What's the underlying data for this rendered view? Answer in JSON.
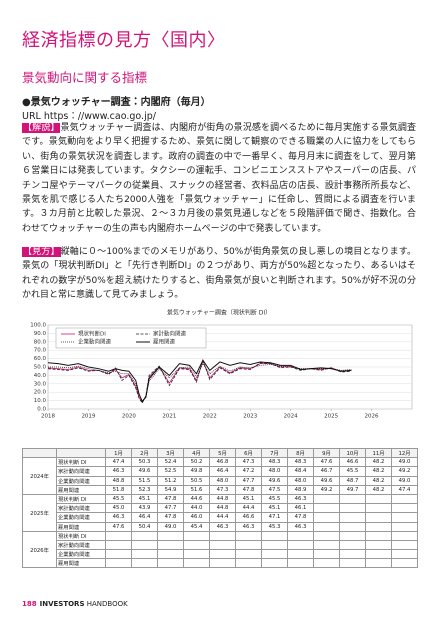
{
  "header": {
    "title": "経済指標の見方〈国内〉"
  },
  "section": {
    "title": "景気動向に関する指標",
    "subtitle": "●景気ウォッチャー調査：内閣府（毎月）",
    "url": "URL https：//www.cao.go.jp/",
    "paragraphs": [
      {
        "label": "【解説】",
        "text": "景気ウォッチャー調査は、内閣府が街角の景況感を調べるために毎月実施する景気調査です。景気動向をより早く把握するため、景気に関して観察のできる職業の人に協力をしてもらい、街角の景気状況を調査します。政府の調査の中で一番早く、毎月月末に調査をして、翌月第６営業日には発表しています。タクシーの運転手、コンビニエンスストアやスーパーの店長、パチンコ屋やテーマパークの従業員、スナックの経営者、衣料品店の店長、設計事務所所長など、景気を肌で感じる人たち2000人強を「景気ウォッチャー」に任命し、質問による調査を行います。３カ月前と比較した景況、２～３カ月後の景気見通しなどを５段階評価で聞き、指数化。合わせてウォッチャーの生の声も内閣府ホームページの中で発表しています。"
      },
      {
        "label": "【見方】",
        "text": "縦軸に０～100%までのメモリがあり、50%が街角景気の良し悪しの境目となります。景気の「現状判断DI」と「先行き判断DI」の２つがあり、両方が50%超となったり、あるいはそれぞれの数字が50%を超え続けたりすると、街角景気が良いと判断されます。50%が好不況の分かれ目と常に意識して見てみましょう。"
      }
    ]
  },
  "chart_data": {
    "type": "line",
    "title": "景気ウォッチャー調査（現状判断 DI）",
    "x": [
      2018.0,
      2018.25,
      2018.5,
      2018.75,
      2019.0,
      2019.25,
      2019.5,
      2019.67,
      2019.83,
      2020.0,
      2020.17,
      2020.25,
      2020.33,
      2020.42,
      2020.5,
      2020.75,
      2021.0,
      2021.25,
      2021.5,
      2021.67,
      2021.83,
      2022.0,
      2022.25,
      2022.5,
      2022.75,
      2023.0,
      2023.25,
      2023.5,
      2023.75,
      2024.0,
      2024.25,
      2024.5,
      2024.75,
      2025.0,
      2025.25,
      2025.5
    ],
    "series": [
      {
        "name": "現状判断DI",
        "color": "#d2147a",
        "style": "solid",
        "values": [
          49,
          48,
          47,
          50,
          46,
          46,
          42,
          47,
          37,
          41,
          27,
          14,
          8,
          15,
          38,
          50,
          31,
          49,
          48,
          34,
          57,
          37,
          50,
          43,
          49,
          48,
          54,
          54,
          50,
          51,
          47,
          48,
          47,
          49,
          45,
          46
        ]
      },
      {
        "name": "家計動向関連",
        "color": "#222222",
        "style": "dashed",
        "values": [
          48,
          47,
          46,
          49,
          45,
          46,
          41,
          49,
          34,
          40,
          25,
          13,
          7,
          16,
          40,
          51,
          28,
          48,
          47,
          32,
          58,
          35,
          49,
          42,
          48,
          47,
          55,
          54,
          49,
          50,
          46,
          48,
          46,
          49,
          44,
          45
        ]
      },
      {
        "name": "企業動向関連",
        "color": "#222222",
        "style": "dotted",
        "values": [
          50,
          50,
          49,
          51,
          48,
          46,
          43,
          45,
          42,
          42,
          30,
          17,
          10,
          14,
          33,
          48,
          37,
          49,
          50,
          38,
          54,
          42,
          51,
          45,
          50,
          49,
          52,
          53,
          51,
          50,
          48,
          48,
          48,
          48,
          46,
          47
        ]
      },
      {
        "name": "雇用関連",
        "color": "#111111",
        "style": "solid",
        "values": [
          55,
          54,
          52,
          54,
          50,
          48,
          45,
          48,
          46,
          45,
          34,
          18,
          9,
          14,
          36,
          50,
          40,
          54,
          52,
          42,
          58,
          46,
          56,
          52,
          55,
          53,
          56,
          55,
          52,
          52,
          47,
          48,
          49,
          48,
          45,
          46
        ]
      }
    ],
    "xlim": [
      2018,
      2027
    ],
    "xticks": [
      2018,
      2019,
      2020,
      2021,
      2022,
      2023,
      2024,
      2025,
      2026
    ],
    "ylim": [
      0,
      100
    ],
    "yticks": [
      {
        "value": 0,
        "label": "0.0"
      },
      {
        "value": 10,
        "label": "10.0"
      },
      {
        "value": 20,
        "label": "20.0"
      },
      {
        "value": 30,
        "label": "30.0"
      },
      {
        "value": 40,
        "label": "40.0"
      },
      {
        "value": 50,
        "label": "50.0"
      },
      {
        "value": 60,
        "label": "60.0"
      },
      {
        "value": 70,
        "label": "70.0"
      },
      {
        "value": 80,
        "label": "80.0"
      },
      {
        "value": 90,
        "label": "90.0"
      },
      {
        "value": 100,
        "label": "100.0"
      }
    ],
    "grid": true,
    "legend": "top-left"
  },
  "table": {
    "months": [
      "1月",
      "2月",
      "3月",
      "4月",
      "5月",
      "6月",
      "7月",
      "8月",
      "9月",
      "10月",
      "11月",
      "12月"
    ],
    "groups": [
      {
        "year": "2024年",
        "rows": [
          {
            "label": "現状判断 DI",
            "values": [
              "47.4",
              "50.3",
              "52.4",
              "50.2",
              "46.8",
              "47.3",
              "48.3",
              "48.3",
              "47.6",
              "46.6",
              "48.2",
              "49.0"
            ]
          },
          {
            "label": "家計動向関連",
            "values": [
              "46.3",
              "49.6",
              "52.5",
              "49.8",
              "46.4",
              "47.2",
              "48.0",
              "48.4",
              "46.7",
              "45.5",
              "48.2",
              "49.2"
            ]
          },
          {
            "label": "企業動向関連",
            "values": [
              "48.8",
              "51.5",
              "51.2",
              "50.5",
              "48.0",
              "47.7",
              "49.6",
              "48.0",
              "49.6",
              "48.7",
              "48.2",
              "49.0"
            ]
          },
          {
            "label": "雇用関連",
            "values": [
              "51.8",
              "52.3",
              "54.9",
              "51.6",
              "47.3",
              "47.8",
              "47.5",
              "48.9",
              "49.2",
              "49.7",
              "48.2",
              "47.4"
            ]
          }
        ]
      },
      {
        "year": "2025年",
        "rows": [
          {
            "label": "現状判断 DI",
            "values": [
              "45.5",
              "45.1",
              "47.8",
              "44.6",
              "44.8",
              "45.1",
              "45.5",
              "46.3"
            ]
          },
          {
            "label": "家計動向関連",
            "values": [
              "45.0",
              "43.9",
              "47.7",
              "44.0",
              "44.8",
              "44.4",
              "45.1",
              "46.1"
            ]
          },
          {
            "label": "企業動向関連",
            "values": [
              "46.3",
              "46.4",
              "47.8",
              "46.0",
              "44.4",
              "46.6",
              "47.1",
              "47.8"
            ]
          },
          {
            "label": "雇用関連",
            "values": [
              "47.6",
              "50.4",
              "49.0",
              "45.4",
              "46.3",
              "46.3",
              "45.3",
              "46.3"
            ]
          }
        ]
      },
      {
        "year": "2026年",
        "rows": [
          {
            "label": "現状判断 DI",
            "values": []
          },
          {
            "label": "家計動向関連",
            "values": []
          },
          {
            "label": "企業動向関連",
            "values": []
          },
          {
            "label": "雇用関連",
            "values": []
          }
        ]
      }
    ]
  },
  "footer": {
    "page": "188",
    "brand": "INVESTORS",
    "book": "HANDBOOK"
  }
}
